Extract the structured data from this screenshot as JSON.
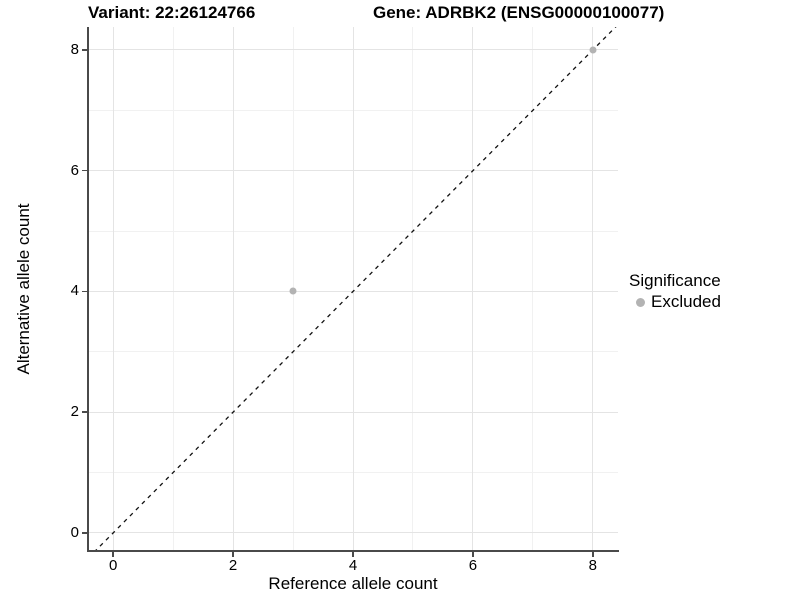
{
  "title": {
    "left": "Variant: 22:26124766",
    "right": "Gene: ADRBK2 (ENSG00000100077)"
  },
  "chart_data": {
    "type": "scatter",
    "xlabel": "Reference allele count",
    "ylabel": "Alternative allele count",
    "xlim": [
      -0.42,
      8.42
    ],
    "ylim": [
      -0.3,
      8.38
    ],
    "x_ticks": [
      0,
      2,
      4,
      6,
      8
    ],
    "y_ticks": [
      0,
      2,
      4,
      6,
      8
    ],
    "minor_grid_x": [
      1,
      3,
      5,
      7
    ],
    "minor_grid_y": [
      1,
      3,
      5,
      7
    ],
    "grid": true,
    "legend_position": "right",
    "points": [
      {
        "x": 3,
        "y": 4,
        "significance": "Excluded"
      },
      {
        "x": 8,
        "y": 8,
        "significance": "Excluded"
      }
    ],
    "identity_line": {
      "slope": 1,
      "intercept": 0,
      "style": "dashed"
    },
    "legend": {
      "title": "Significance",
      "items": [
        {
          "label": "Excluded",
          "color": "#b3b3b3"
        }
      ]
    },
    "colors": {
      "excluded_point": "#b3b3b3",
      "grid_major": "#e4e4e4",
      "grid_minor": "#f1f1f1",
      "axis_line": "#4a4a4a",
      "dashed_line": "#111111",
      "text": "#000000",
      "background": "#ffffff"
    }
  }
}
